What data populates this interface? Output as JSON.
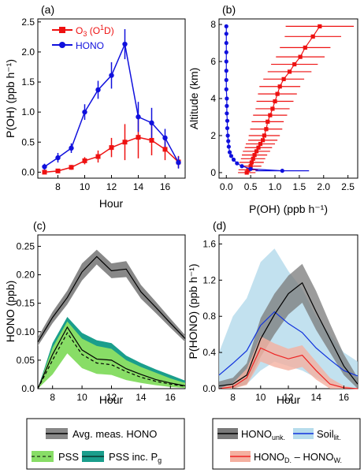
{
  "chart_data": [
    {
      "panel": "(a)",
      "type": "line",
      "xlabel": "Hour",
      "ylabel": "P(OH) (ppb h⁻¹)",
      "xlim": [
        6.5,
        17.5
      ],
      "ylim": [
        -0.1,
        2.55
      ],
      "xticks": [
        "8",
        "10",
        "12",
        "14",
        "16"
      ],
      "yticks": [
        "0.0",
        "0.5",
        "1.0",
        "1.5",
        "2.0",
        "2.5"
      ],
      "legend": "top-left",
      "series": [
        {
          "name": "O₃ (O¹D)",
          "color": "#ee1111",
          "marker": "square",
          "x": [
            7,
            8,
            9,
            10,
            11,
            12,
            13,
            14,
            15,
            16,
            17
          ],
          "y": [
            0.0,
            0.02,
            0.08,
            0.19,
            0.26,
            0.41,
            0.5,
            0.58,
            0.53,
            0.38,
            0.17
          ],
          "err": [
            0.02,
            0.02,
            0.04,
            0.06,
            0.1,
            0.16,
            0.3,
            0.35,
            0.25,
            0.18,
            0.1
          ]
        },
        {
          "name": "HONO",
          "color": "#1010dd",
          "marker": "circle",
          "x": [
            7,
            8,
            9,
            10,
            11,
            12,
            13,
            14,
            15,
            16,
            17
          ],
          "y": [
            0.09,
            0.24,
            0.4,
            1.0,
            1.37,
            1.61,
            2.13,
            0.92,
            0.82,
            0.57,
            0.16
          ],
          "err": [
            0.05,
            0.08,
            0.08,
            0.13,
            0.15,
            0.22,
            0.25,
            0.25,
            0.25,
            0.15,
            0.1
          ]
        }
      ]
    },
    {
      "panel": "(b)",
      "type": "scatter",
      "xlabel": "P(OH) (ppb h⁻¹)",
      "ylabel": "Altitude (km)",
      "xlim": [
        -0.15,
        2.7
      ],
      "ylim": [
        -0.3,
        8.3
      ],
      "xticks": [
        "0.0",
        "0.5",
        "1.0",
        "1.5",
        "2.0",
        "2.5"
      ],
      "yticks": [
        "0",
        "2",
        "4",
        "6",
        "8"
      ],
      "series": [
        {
          "name": "",
          "color": "#ee1111",
          "marker": "square",
          "points": [
            [
              0.42,
              0.0,
              0.18
            ],
            [
              0.45,
              0.15,
              0.2
            ],
            [
              0.5,
              0.35,
              0.22
            ],
            [
              0.52,
              0.55,
              0.25
            ],
            [
              0.55,
              0.75,
              0.25
            ],
            [
              0.58,
              0.95,
              0.26
            ],
            [
              0.62,
              1.15,
              0.28
            ],
            [
              0.66,
              1.35,
              0.28
            ],
            [
              0.7,
              1.55,
              0.3
            ],
            [
              0.75,
              1.75,
              0.3
            ],
            [
              0.78,
              2.0,
              0.32
            ],
            [
              0.82,
              2.35,
              0.33
            ],
            [
              0.85,
              2.75,
              0.33
            ],
            [
              0.9,
              3.1,
              0.35
            ],
            [
              0.95,
              3.45,
              0.35
            ],
            [
              1.0,
              3.85,
              0.38
            ],
            [
              1.05,
              4.25,
              0.4
            ],
            [
              1.1,
              4.65,
              0.42
            ],
            [
              1.18,
              5.05,
              0.42
            ],
            [
              1.3,
              5.45,
              0.45
            ],
            [
              1.4,
              5.85,
              0.48
            ],
            [
              1.52,
              6.25,
              0.5
            ],
            [
              1.62,
              6.75,
              0.52
            ],
            [
              1.78,
              7.35,
              0.58
            ],
            [
              1.92,
              7.9,
              0.7
            ]
          ]
        },
        {
          "name": "",
          "color": "#1010dd",
          "marker": "circle",
          "points": [
            [
              1.15,
              0.1,
              0.55
            ],
            [
              0.5,
              0.2,
              0
            ],
            [
              0.32,
              0.35,
              0
            ],
            [
              0.22,
              0.5,
              0
            ],
            [
              0.15,
              0.7,
              0
            ],
            [
              0.1,
              0.9,
              0
            ],
            [
              0.07,
              1.1,
              0
            ],
            [
              0.05,
              1.4,
              0
            ],
            [
              0.04,
              1.7,
              0
            ],
            [
              0.03,
              2.0,
              0
            ],
            [
              0.02,
              2.4,
              0
            ],
            [
              0.02,
              2.8,
              0
            ],
            [
              0.01,
              3.2,
              0
            ],
            [
              0.01,
              3.6,
              0
            ],
            [
              0.01,
              4.0,
              0
            ],
            [
              0.0,
              4.5,
              0
            ],
            [
              0.0,
              5.0,
              0
            ],
            [
              0.0,
              5.5,
              0
            ],
            [
              0.0,
              6.0,
              0
            ],
            [
              0.0,
              6.5,
              0
            ],
            [
              0.0,
              7.0,
              0
            ],
            [
              0.0,
              7.5,
              0
            ],
            [
              0.0,
              7.9,
              0
            ]
          ]
        }
      ]
    },
    {
      "panel": "(c)",
      "type": "area",
      "xlabel": "Hour",
      "ylabel": "HONO (ppb)",
      "xlim": [
        7,
        17
      ],
      "ylim": [
        0,
        0.27
      ],
      "xticks": [
        "8",
        "10",
        "12",
        "14",
        "16"
      ],
      "yticks": [
        "0.0",
        "0.05",
        "0.10",
        "0.15",
        "0.20",
        "0.25"
      ],
      "x": [
        7,
        8,
        9,
        10,
        11,
        12,
        13,
        14,
        15,
        16,
        17
      ],
      "series": [
        {
          "name": "Avg. meas. HONO",
          "color": "#000000",
          "band_color": "#888888",
          "values": [
            0.082,
            0.125,
            0.16,
            0.205,
            0.232,
            0.207,
            0.21,
            0.17,
            0.143,
            0.115,
            0.088
          ],
          "lower": [
            0.075,
            0.115,
            0.148,
            0.19,
            0.218,
            0.194,
            0.196,
            0.158,
            0.133,
            0.107,
            0.082
          ],
          "upper": [
            0.09,
            0.135,
            0.172,
            0.22,
            0.244,
            0.22,
            0.224,
            0.182,
            0.153,
            0.123,
            0.094
          ]
        },
        {
          "name": "PSS inc. Pg",
          "color": "#000000",
          "band_color": "#1a9e8c",
          "values": [
            0.0,
            0.06,
            0.108,
            0.068,
            0.052,
            0.05,
            0.035,
            0.025,
            0.016,
            0.01,
            0.005
          ],
          "lower": [
            0.0,
            0.03,
            0.068,
            0.04,
            0.03,
            0.028,
            0.018,
            0.012,
            0.008,
            0.004,
            0.002
          ],
          "upper": [
            0.0,
            0.08,
            0.126,
            0.098,
            0.085,
            0.08,
            0.058,
            0.045,
            0.034,
            0.024,
            0.014
          ]
        },
        {
          "name": "PSS",
          "color": "#000000",
          "dashed": true,
          "band_color": "#88dd66",
          "values": [
            0.0,
            0.05,
            0.098,
            0.06,
            0.045,
            0.042,
            0.03,
            0.02,
            0.013,
            0.008,
            0.004
          ],
          "lower": [
            0.0,
            0.025,
            0.062,
            0.036,
            0.026,
            0.024,
            0.015,
            0.01,
            0.006,
            0.003,
            0.001
          ],
          "upper": [
            0.0,
            0.072,
            0.118,
            0.088,
            0.075,
            0.07,
            0.05,
            0.038,
            0.028,
            0.018,
            0.01
          ]
        }
      ]
    },
    {
      "panel": "(d)",
      "type": "area",
      "xlabel": "Hour",
      "ylabel": "P(HONO) (ppb h⁻¹)",
      "xlim": [
        7,
        17
      ],
      "ylim": [
        0,
        1.7
      ],
      "xticks": [
        "8",
        "10",
        "12",
        "14",
        "16"
      ],
      "yticks": [
        "0.0",
        "0.4",
        "0.8",
        "1.2",
        "1.6"
      ],
      "x": [
        7,
        8,
        9,
        10,
        11,
        12,
        13,
        14,
        15,
        16,
        17
      ],
      "series": [
        {
          "name": "Soil",
          "name_sub": "lit.",
          "color": "#1133dd",
          "band_color": "#b7dcec",
          "values": [
            0.15,
            0.28,
            0.42,
            0.7,
            0.85,
            0.72,
            0.62,
            0.45,
            0.32,
            0.2,
            0.14
          ],
          "lower": [
            0.0,
            0.0,
            0.05,
            0.2,
            0.3,
            0.25,
            0.2,
            0.12,
            0.05,
            0.02,
            0.0
          ],
          "upper": [
            0.4,
            0.8,
            1.0,
            1.4,
            1.55,
            1.3,
            1.1,
            0.8,
            0.6,
            0.4,
            0.3
          ]
        },
        {
          "name": "HONO",
          "name_sub": "unk.",
          "color": "#000000",
          "band_color": "#7a7a7a",
          "values": [
            0.03,
            0.05,
            0.15,
            0.55,
            0.82,
            1.05,
            1.17,
            0.85,
            0.55,
            0.25,
            0.05
          ],
          "lower": [
            0.0,
            0.0,
            0.05,
            0.35,
            0.6,
            0.82,
            0.95,
            0.65,
            0.4,
            0.15,
            0.0
          ],
          "upper": [
            0.08,
            0.12,
            0.28,
            0.78,
            1.05,
            1.25,
            1.38,
            1.08,
            0.72,
            0.38,
            0.12
          ]
        },
        {
          "name": "HONO",
          "name_sub": "D.",
          "name_mid": " – HONO",
          "name_sub2": "W.",
          "color": "#ee2222",
          "band_color": "#f4b0a0",
          "values": [
            0.0,
            0.02,
            0.12,
            0.45,
            0.38,
            0.33,
            0.37,
            0.2,
            0.05,
            0.01,
            0.0
          ],
          "lower": [
            0.0,
            0.0,
            0.04,
            0.3,
            0.24,
            0.2,
            0.24,
            0.1,
            0.0,
            0.0,
            0.0
          ],
          "upper": [
            0.0,
            0.06,
            0.22,
            0.58,
            0.5,
            0.44,
            0.48,
            0.3,
            0.12,
            0.03,
            0.0
          ]
        }
      ]
    }
  ],
  "legend_c": {
    "avg": "Avg. meas. HONO",
    "pss": "PSS",
    "pss_inc": "PSS inc. P",
    "pss_inc_sub": "g"
  },
  "legend_d": {
    "unk": "HONO",
    "unk_sub": "unk.",
    "soil": "Soil",
    "soil_sub": "lit.",
    "dw_a": "HONO",
    "dw_a_sub": "D.",
    "dw_b": " – HONO",
    "dw_b_sub": "W."
  },
  "legend_a": {
    "o3": "O",
    "o3_sub": "3",
    "o3_tail": " (O",
    "o3_sup": "1",
    "o3_end": "D)",
    "hono": "HONO"
  },
  "labels": {
    "panel_a": "(a)",
    "panel_b": "(b)",
    "panel_c": "(c)",
    "panel_d": "(d)",
    "a_xlabel": "Hour",
    "a_ylabel": "P(OH) (ppb h⁻¹)",
    "b_xlabel": "P(OH) (ppb h⁻¹)",
    "b_ylabel": "Altitude (km)",
    "c_xlabel": "Hour",
    "c_ylabel": "HONO (ppb)",
    "d_xlabel": "Hour",
    "d_ylabel": "P(HONO) (ppb h⁻¹)"
  }
}
